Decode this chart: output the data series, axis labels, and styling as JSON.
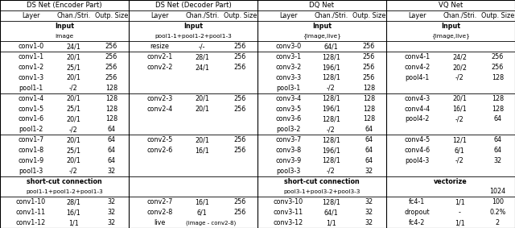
{
  "ds_encoder_title": "DS Net (Encoder Part)",
  "ds_decoder_title": "DS Net (Decoder Part)",
  "dq_title": "DQ Net",
  "vq_title": "VQ Net",
  "col_headers": [
    "Layer",
    "Chan./Stri.",
    "Outp. Size"
  ],
  "ds_enc_input_sub": "image",
  "ds_dec_input_sub": "pool1-1+pool1-2+pool1-3",
  "dq_input_sub": "{image,live}",
  "vq_input_sub": "{image,live}",
  "ds_enc_shortcut_bold": "short-cut connection",
  "ds_enc_shortcut_sub": "pool1-1+pool1-2+pool1-3",
  "dq_shortcut_bold": "short-cut connection",
  "dq_shortcut_sub": "pool3-1+pool3-2+pool3-3",
  "vq_vectorize": "vectorize",
  "vq_vectorize_size": "1024",
  "ds_enc_rows": [
    [
      "conv1-0",
      "24/1",
      "256"
    ],
    [
      "conv1-1",
      "20/1",
      "256"
    ],
    [
      "conv1-2",
      "25/1",
      "256"
    ],
    [
      "conv1-3",
      "20/1",
      "256"
    ],
    [
      "pool1-1",
      "-/2",
      "128"
    ],
    [
      "conv1-4",
      "20/1",
      "128"
    ],
    [
      "conv1-5",
      "25/1",
      "128"
    ],
    [
      "conv1-6",
      "20/1",
      "128"
    ],
    [
      "pool1-2",
      "-/2",
      "64"
    ],
    [
      "conv1-7",
      "20/1",
      "64"
    ],
    [
      "conv1-8",
      "25/1",
      "64"
    ],
    [
      "conv1-9",
      "20/1",
      "64"
    ],
    [
      "pool1-3",
      "-/2",
      "32"
    ],
    [
      "conv1-10",
      "28/1",
      "32"
    ],
    [
      "conv1-11",
      "16/1",
      "32"
    ],
    [
      "conv1-12",
      "1/1",
      "32"
    ]
  ],
  "ds_dec_rows": [
    [
      "resize",
      "-/-",
      "256"
    ],
    [
      "conv2-1",
      "28/1",
      "256"
    ],
    [
      "conv2-2",
      "24/1",
      "256"
    ],
    [
      "",
      "",
      ""
    ],
    [
      "",
      "",
      ""
    ],
    [
      "conv2-3",
      "20/1",
      "256"
    ],
    [
      "conv2-4",
      "20/1",
      "256"
    ],
    [
      "",
      "",
      ""
    ],
    [
      "",
      "",
      ""
    ],
    [
      "conv2-5",
      "20/1",
      "256"
    ],
    [
      "conv2-6",
      "16/1",
      "256"
    ],
    [
      "",
      "",
      ""
    ],
    [
      "",
      "",
      ""
    ],
    [
      "conv2-7",
      "16/1",
      "256"
    ],
    [
      "conv2-8",
      "6/1",
      "256"
    ],
    [
      "live",
      "(image - conv2-8)",
      ""
    ]
  ],
  "dq_rows": [
    [
      "conv3-0",
      "64/1",
      "256"
    ],
    [
      "conv3-1",
      "128/1",
      "256"
    ],
    [
      "conv3-2",
      "196/1",
      "256"
    ],
    [
      "conv3-3",
      "128/1",
      "256"
    ],
    [
      "pool3-1",
      "-/2",
      "128"
    ],
    [
      "conv3-4",
      "128/1",
      "128"
    ],
    [
      "conv3-5",
      "196/1",
      "128"
    ],
    [
      "conv3-6",
      "128/1",
      "128"
    ],
    [
      "pool3-2",
      "-/2",
      "64"
    ],
    [
      "conv3-7",
      "128/1",
      "64"
    ],
    [
      "conv3-8",
      "196/1",
      "64"
    ],
    [
      "conv3-9",
      "128/1",
      "64"
    ],
    [
      "pool3-3",
      "-/2",
      "32"
    ],
    [
      "conv3-10",
      "128/1",
      "32"
    ],
    [
      "conv3-11",
      "64/1",
      "32"
    ],
    [
      "conv3-12",
      "1/1",
      "32"
    ]
  ],
  "vq_rows": [
    [
      "",
      "",
      ""
    ],
    [
      "conv4-1",
      "24/2",
      "256"
    ],
    [
      "conv4-2",
      "20/2",
      "256"
    ],
    [
      "pool4-1",
      "-/2",
      "128"
    ],
    [
      "",
      "",
      ""
    ],
    [
      "conv4-3",
      "20/1",
      "128"
    ],
    [
      "conv4-4",
      "16/1",
      "128"
    ],
    [
      "pool4-2",
      "-/2",
      "64"
    ],
    [
      "",
      "",
      ""
    ],
    [
      "conv4-5",
      "12/1",
      "64"
    ],
    [
      "conv4-6",
      "6/1",
      "64"
    ],
    [
      "pool4-3",
      "-/2",
      "32"
    ],
    [
      "",
      "",
      ""
    ],
    [
      "fc4-1",
      "1/1",
      "100"
    ],
    [
      "dropout",
      "-",
      "0.2%"
    ],
    [
      "fc4-2",
      "1/1",
      "2"
    ]
  ],
  "bg_color": "#ffffff",
  "line_color": "#000000",
  "text_color": "#000000",
  "font_size": 5.8
}
